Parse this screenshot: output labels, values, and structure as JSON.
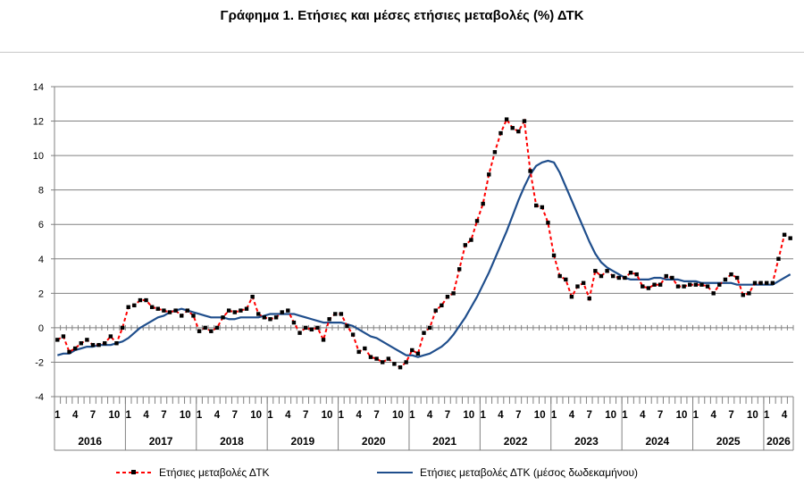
{
  "chart_data": {
    "type": "line",
    "title": "Γράφημα 1. Ετήσιες και μέσες ετήσιες μεταβολές (%) ΔΤΚ",
    "xlabel": "",
    "ylabel": "",
    "ylim": [
      -4,
      14
    ],
    "yticks": [
      "14",
      "12",
      "10",
      "8",
      "6",
      "4",
      "2",
      "0",
      "-2",
      "-4"
    ],
    "ytick_values": [
      14,
      12,
      10,
      8,
      6,
      4,
      2,
      0,
      -2,
      -4
    ],
    "month_ticks": [
      "1",
      "4",
      "7",
      "10"
    ],
    "years": [
      "2016",
      "2017",
      "2018",
      "2019",
      "2020",
      "2021",
      "2022",
      "2023",
      "2024",
      "2025",
      "2026"
    ],
    "grid": true,
    "legend_position": "bottom",
    "colors": {
      "annual": "#ff0000",
      "marker": "#000000",
      "average": "#1f4e8c",
      "grid": "#808080"
    },
    "series": [
      {
        "name": "Ετήσιες μεταβολές ΔΤΚ",
        "style": "dashed-markers",
        "values": [
          -0.7,
          -0.5,
          -1.4,
          -1.2,
          -0.9,
          -0.7,
          -1,
          -1,
          -0.9,
          -0.5,
          -0.9,
          0,
          1.2,
          1.3,
          1.6,
          1.6,
          1.2,
          1.1,
          1,
          0.9,
          1,
          0.7,
          1,
          0.7,
          -0.2,
          0,
          -0.2,
          0,
          0.6,
          1,
          0.9,
          1,
          1.1,
          1.8,
          0.8,
          0.6,
          0.5,
          0.6,
          0.9,
          1,
          0.3,
          -0.3,
          0,
          -0.1,
          0,
          -0.7,
          0.5,
          0.8,
          0.8,
          0.1,
          -0.4,
          -1.4,
          -1.2,
          -1.7,
          -1.8,
          -2,
          -1.8,
          -2.1,
          -2.3,
          -2,
          -1.3,
          -1.5,
          -0.3,
          0,
          1,
          1.3,
          1.8,
          2,
          3.4,
          4.8,
          5.1,
          6.2,
          7.2,
          8.9,
          10.2,
          11.3,
          12.1,
          11.6,
          11.4,
          12,
          9.1,
          7.1,
          7,
          6.1,
          4.2,
          3,
          2.8,
          1.8,
          2.4,
          2.6,
          1.7,
          3.3,
          3,
          3.3,
          3,
          2.9,
          2.9,
          3.2,
          3.1,
          2.4,
          2.3,
          2.5,
          2.5,
          3,
          2.9,
          2.4,
          2.4,
          2.5,
          2.5,
          2.5,
          2.4,
          2,
          2.5,
          2.8,
          3.1,
          2.9,
          1.9,
          2,
          2.6,
          2.6,
          2.6,
          2.6,
          4,
          5.4,
          5.2
        ]
      },
      {
        "name": "Ετήσιες μεταβολές ΔΤΚ (μέσος δωδεκαμήνου)",
        "style": "solid",
        "values": [
          -1.6,
          -1.5,
          -1.5,
          -1.3,
          -1.2,
          -1.1,
          -1.1,
          -1,
          -1,
          -1,
          -0.9,
          -0.8,
          -0.6,
          -0.3,
          0,
          0.2,
          0.4,
          0.6,
          0.7,
          0.9,
          1,
          1.1,
          1,
          0.9,
          0.8,
          0.7,
          0.6,
          0.6,
          0.6,
          0.5,
          0.5,
          0.6,
          0.6,
          0.6,
          0.6,
          0.7,
          0.8,
          0.8,
          0.8,
          0.8,
          0.8,
          0.7,
          0.6,
          0.5,
          0.4,
          0.3,
          0.3,
          0.3,
          0.3,
          0.2,
          0.1,
          -0.1,
          -0.3,
          -0.5,
          -0.6,
          -0.8,
          -1,
          -1.2,
          -1.4,
          -1.6,
          -1.6,
          -1.7,
          -1.6,
          -1.5,
          -1.3,
          -1.1,
          -0.8,
          -0.4,
          0.1,
          0.6,
          1.2,
          1.8,
          2.5,
          3.2,
          4,
          4.8,
          5.6,
          6.5,
          7.4,
          8.2,
          8.9,
          9.4,
          9.6,
          9.7,
          9.6,
          9,
          8.2,
          7.4,
          6.6,
          5.8,
          5,
          4.3,
          3.8,
          3.5,
          3.3,
          3.1,
          2.9,
          2.8,
          2.8,
          2.8,
          2.8,
          2.9,
          2.9,
          2.8,
          2.8,
          2.8,
          2.7,
          2.7,
          2.7,
          2.6,
          2.6,
          2.6,
          2.6,
          2.6,
          2.6,
          2.5,
          2.5,
          2.5,
          2.5,
          2.5,
          2.5,
          2.5,
          2.7,
          2.9,
          3.1
        ]
      }
    ]
  },
  "legend": {
    "annual_label": "Ετήσιες μεταβολές ΔΤΚ",
    "average_label": "Ετήσιες μεταβολές ΔΤΚ (μέσος δωδεκαμήνου)"
  }
}
